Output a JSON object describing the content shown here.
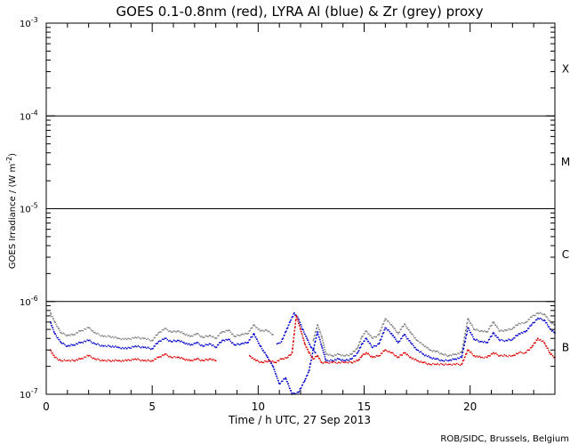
{
  "chart_data": {
    "type": "scatter",
    "title": "GOES 0.1-0.8nm (red), LYRA Al (blue) & Zr (grey) proxy",
    "xlabel": "Time / h UTC, 27 Sep 2013",
    "ylabel": "GOES Irradiance / (W m",
    "ylabel_sup": "-2",
    "ylabel_end": ")",
    "xlim": [
      0,
      24
    ],
    "ylim": [
      1e-07,
      0.001
    ],
    "yscale": "log",
    "x_ticks": [
      {
        "value": 0,
        "label": "0"
      },
      {
        "value": 5,
        "label": "5"
      },
      {
        "value": 10,
        "label": "10"
      },
      {
        "value": 15,
        "label": "15"
      },
      {
        "value": 20,
        "label": "20"
      }
    ],
    "y_ticks": [
      {
        "value": 1e-07,
        "base": "10",
        "exp": "-7"
      },
      {
        "value": 1e-06,
        "base": "10",
        "exp": "-6"
      },
      {
        "value": 1e-05,
        "base": "10",
        "exp": "-5"
      },
      {
        "value": 0.0001,
        "base": "10",
        "exp": "-4"
      },
      {
        "value": 0.001,
        "base": "10",
        "exp": "-3"
      }
    ],
    "class_lines": [
      1e-06,
      1e-05,
      0.0001
    ],
    "class_labels": [
      {
        "label": "X",
        "value": 0.00032
      },
      {
        "label": "M",
        "value": 3.2e-05
      },
      {
        "label": "C",
        "value": 3.2e-06
      },
      {
        "label": "B",
        "value": 3.2e-07
      }
    ],
    "series": [
      {
        "color": "#808080",
        "x": [
          0.2,
          0.4,
          0.7,
          1.0,
          1.3,
          1.6,
          2.0,
          2.3,
          2.7,
          3.0,
          3.4,
          3.8,
          4.2,
          4.6,
          5.0,
          5.3,
          5.6,
          5.9,
          6.2,
          6.5,
          6.8,
          7.1,
          7.4,
          7.7,
          8.0,
          8.3,
          8.6,
          8.9,
          9.2,
          9.5,
          9.8,
          10.1,
          10.4,
          10.7
        ],
        "y": [
          7.5e-07,
          6e-07,
          4.6e-07,
          4.3e-07,
          4.4e-07,
          4.8e-07,
          5.2e-07,
          4.6e-07,
          4.2e-07,
          4.2e-07,
          4e-07,
          3.9e-07,
          4.1e-07,
          4e-07,
          3.8e-07,
          4.6e-07,
          5.1e-07,
          4.7e-07,
          4.8e-07,
          4.5e-07,
          4.2e-07,
          4.5e-07,
          4.1e-07,
          4.3e-07,
          4e-07,
          4.7e-07,
          4.9e-07,
          4.2e-07,
          4.4e-07,
          4.5e-07,
          5.6e-07,
          4.8e-07,
          4.9e-07,
          4.4e-07
        ]
      },
      {
        "color": "#808080",
        "x": [
          12.6,
          12.8,
          13.0,
          13.2,
          13.5,
          13.8,
          14.1,
          14.4,
          14.7,
          14.9,
          15.1,
          15.4,
          15.7,
          16.0,
          16.3,
          16.6,
          16.9,
          17.2,
          17.5,
          17.8,
          18.1,
          18.4,
          18.7,
          19.0,
          19.3,
          19.6,
          19.9,
          20.2,
          20.5,
          20.8,
          21.1,
          21.4,
          21.7,
          22.0,
          22.3,
          22.6,
          22.9,
          23.2,
          23.5,
          23.8,
          24.0
        ],
        "y": [
          3.8e-07,
          5.6e-07,
          4.2e-07,
          2.7e-07,
          2.6e-07,
          2.7e-07,
          2.6e-07,
          2.7e-07,
          3.2e-07,
          4.2e-07,
          4.8e-07,
          4e-07,
          4.4e-07,
          6.5e-07,
          5.6e-07,
          4.5e-07,
          5.7e-07,
          4.6e-07,
          3.8e-07,
          3.4e-07,
          3e-07,
          2.9e-07,
          2.7e-07,
          2.6e-07,
          2.7e-07,
          2.8e-07,
          6.5e-07,
          5e-07,
          4.8e-07,
          4.7e-07,
          6e-07,
          4.8e-07,
          4.9e-07,
          5.1e-07,
          5.8e-07,
          5.9e-07,
          6.8e-07,
          7.5e-07,
          7.3e-07,
          6e-07,
          5.6e-07
        ]
      },
      {
        "color": "#0000cc",
        "x": [
          0.2,
          0.4,
          0.7,
          1.0,
          1.3,
          1.6,
          2.0,
          2.3,
          2.7,
          3.0,
          3.4,
          3.8,
          4.2,
          4.6,
          5.0,
          5.3,
          5.6,
          5.9,
          6.2,
          6.5,
          6.8,
          7.1,
          7.4,
          7.7,
          8.0,
          8.3,
          8.6,
          8.9,
          9.2,
          9.5,
          9.8,
          10.1,
          10.4,
          10.7,
          11.0,
          11.3,
          11.6,
          11.9,
          12.2,
          12.4,
          12.6,
          12.8,
          13.0,
          13.2,
          13.5,
          13.8,
          14.1,
          14.4,
          14.7,
          14.9,
          15.1,
          15.4,
          15.7,
          16.0,
          16.3,
          16.6,
          16.9,
          17.2,
          17.5,
          17.8,
          18.1,
          18.4,
          18.7,
          19.0,
          19.3,
          19.6,
          19.9,
          20.2,
          20.5,
          20.8,
          21.1,
          21.4,
          21.7,
          22.0,
          22.3,
          22.6,
          22.9,
          23.2,
          23.5,
          23.8,
          24.0
        ],
        "y": [
          6e-07,
          4.5e-07,
          3.6e-07,
          3.3e-07,
          3.4e-07,
          3.6e-07,
          3.8e-07,
          3.5e-07,
          3.3e-07,
          3.3e-07,
          3.2e-07,
          3.1e-07,
          3.3e-07,
          3.2e-07,
          3.1e-07,
          3.7e-07,
          4e-07,
          3.7e-07,
          3.8e-07,
          3.6e-07,
          3.4e-07,
          3.6e-07,
          3.3e-07,
          3.5e-07,
          3.2e-07,
          3.8e-07,
          3.9e-07,
          3.4e-07,
          3.5e-07,
          3.6e-07,
          4.5e-07,
          3.3e-07,
          2.6e-07,
          2e-07,
          1.3e-07,
          1.5e-07,
          1e-07,
          1.05e-07,
          1.4e-07,
          1.8e-07,
          3e-07,
          4.7e-07,
          3.3e-07,
          2.3e-07,
          2.3e-07,
          2.4e-07,
          2.3e-07,
          2.4e-07,
          2.8e-07,
          3.5e-07,
          4e-07,
          3.2e-07,
          3.5e-07,
          5.2e-07,
          4.5e-07,
          3.6e-07,
          4.4e-07,
          3.6e-07,
          3e-07,
          2.7e-07,
          2.5e-07,
          2.4e-07,
          2.3e-07,
          2.3e-07,
          2.4e-07,
          2.5e-07,
          5.2e-07,
          3.9e-07,
          3.7e-07,
          3.6e-07,
          4.6e-07,
          3.8e-07,
          3.8e-07,
          3.9e-07,
          4.5e-07,
          4.7e-07,
          5.6e-07,
          6.6e-07,
          6.3e-07,
          5e-07,
          4.6e-07
        ]
      },
      {
        "color": "#0000cc",
        "x": [
          10.9,
          11.1,
          11.3,
          11.5,
          11.7,
          11.9,
          12.1,
          12.3,
          12.5,
          12.7
        ],
        "y": [
          3.5e-07,
          3.7e-07,
          4.7e-07,
          6e-07,
          7.5e-07,
          6.5e-07,
          5e-07,
          4e-07,
          3.2e-07,
          2.8e-07
        ]
      },
      {
        "color": "#dd0000",
        "x": [
          0.2,
          0.4,
          0.7,
          1.0,
          1.3,
          1.6,
          2.0,
          2.3,
          2.7,
          3.0,
          3.4,
          3.8,
          4.2,
          4.6,
          5.0,
          5.3,
          5.6,
          5.9,
          6.2,
          6.5,
          6.8,
          7.1,
          7.4,
          7.7,
          8.0
        ],
        "y": [
          3e-07,
          2.5e-07,
          2.3e-07,
          2.3e-07,
          2.3e-07,
          2.4e-07,
          2.6e-07,
          2.4e-07,
          2.3e-07,
          2.3e-07,
          2.3e-07,
          2.3e-07,
          2.4e-07,
          2.3e-07,
          2.3e-07,
          2.5e-07,
          2.7e-07,
          2.5e-07,
          2.5e-07,
          2.4e-07,
          2.3e-07,
          2.4e-07,
          2.3e-07,
          2.4e-07,
          2.3e-07
        ]
      },
      {
        "color": "#dd0000",
        "x": [
          9.6,
          9.9,
          10.2,
          10.5,
          10.8,
          11.1,
          11.4,
          11.6,
          11.8,
          12.0,
          12.2,
          12.4,
          12.6,
          12.8,
          13.0,
          13.2,
          13.5,
          13.8,
          14.1,
          14.4,
          14.7,
          14.9,
          15.1,
          15.4,
          15.7,
          16.0,
          16.3,
          16.6,
          16.9,
          17.2,
          17.5,
          17.8,
          18.1,
          18.4,
          18.7,
          19.0,
          19.3,
          19.6,
          19.9,
          20.2,
          20.5,
          20.8,
          21.1,
          21.4,
          21.7,
          22.0,
          22.3,
          22.6,
          22.9,
          23.2,
          23.5,
          23.8,
          24.0
        ],
        "y": [
          2.6e-07,
          2.3e-07,
          2.2e-07,
          2.3e-07,
          2.2e-07,
          2.4e-07,
          2.5e-07,
          2.8e-07,
          7e-07,
          5e-07,
          3.5e-07,
          2.8e-07,
          2.4e-07,
          2.6e-07,
          2.2e-07,
          2.2e-07,
          2.2e-07,
          2.2e-07,
          2.2e-07,
          2.2e-07,
          2.3e-07,
          2.6e-07,
          2.8e-07,
          2.5e-07,
          2.6e-07,
          3e-07,
          2.8e-07,
          2.5e-07,
          2.8e-07,
          2.5e-07,
          2.3e-07,
          2.2e-07,
          2.1e-07,
          2.1e-07,
          2.1e-07,
          2.1e-07,
          2.1e-07,
          2.1e-07,
          3e-07,
          2.6e-07,
          2.5e-07,
          2.5e-07,
          2.8e-07,
          2.6e-07,
          2.6e-07,
          2.6e-07,
          2.8e-07,
          2.8e-07,
          3.2e-07,
          4e-07,
          3.6e-07,
          2.7e-07,
          2.5e-07
        ]
      }
    ],
    "credit": "ROB/SIDC, Brussels, Belgium"
  }
}
